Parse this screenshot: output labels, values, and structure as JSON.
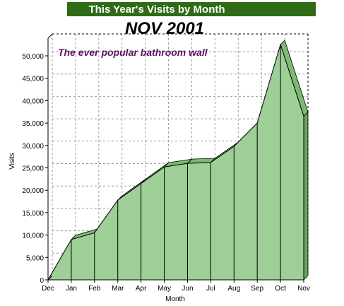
{
  "header": {
    "banner_title": "This Year's Visits by Month",
    "banner_color": "#2f6b17"
  },
  "chart_data": {
    "type": "area",
    "title": "NOV 2001",
    "annotation": "The ever popular bathroom wall",
    "xlabel": "Month",
    "ylabel": "Visits",
    "categories": [
      "Dec",
      "Jan",
      "Feb",
      "Mar",
      "Apr",
      "May",
      "Jun",
      "Jul",
      "Aug",
      "Sep",
      "Oct",
      "Nov"
    ],
    "series": [
      {
        "values": [
          0,
          9000,
          10500,
          17800,
          21500,
          25200,
          26000,
          26200,
          29800,
          35000,
          52500,
          36500
        ]
      }
    ],
    "ylim": [
      0,
      52500
    ],
    "yticks": [
      0,
      5000,
      10000,
      15000,
      20000,
      25000,
      30000,
      35000,
      40000,
      45000,
      50000
    ],
    "ytick_labels": [
      "0",
      "5,000",
      "10,000",
      "15,000",
      "20,000",
      "25,000",
      "30,000",
      "35,000",
      "40,000",
      "45,000",
      "50,000"
    ],
    "grid": true,
    "fill_color": "#9dcf96",
    "top_color": "#7cba72",
    "side_color": "#6aa362",
    "annotation_color": "#5a1460",
    "grid_color": "#9a9a9a"
  }
}
